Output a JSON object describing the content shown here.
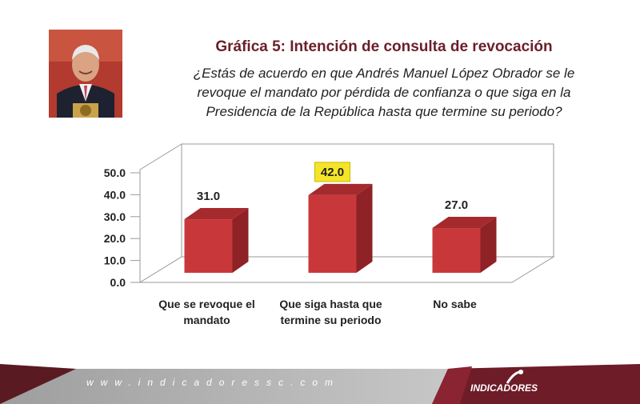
{
  "header": {
    "title": "Gráfica 5: Intención de consulta de revocación",
    "question_lines": [
      "¿Estás de acuerdo en que Andrés Manuel López Obrador se le",
      "revoque el mandato por pérdida de confianza o que siga en la",
      "Presidencia de la República hasta que termine su periodo?"
    ]
  },
  "chart_data": {
    "type": "bar",
    "categories": [
      [
        "Que se revoque el",
        "mandato"
      ],
      [
        "Que siga hasta que",
        "termine su periodo"
      ],
      [
        "No sabe"
      ]
    ],
    "values": [
      31.0,
      42.0,
      27.0
    ],
    "value_labels": [
      "31.0",
      "42.0",
      "27.0"
    ],
    "highlighted_index": 1,
    "yticks": [
      "0.0",
      "10.0",
      "20.0",
      "30.0",
      "40.0",
      "50.0"
    ],
    "ylim": [
      0,
      50
    ],
    "grid": false,
    "three_d": true,
    "colors": {
      "bar_front": "#c8383b",
      "bar_side": "#8e2226",
      "bar_top": "#a52a2e",
      "highlight": "#f5e52a"
    }
  },
  "footer": {
    "url": "www.indicadoressc.com",
    "brand": "INDICADORES"
  }
}
